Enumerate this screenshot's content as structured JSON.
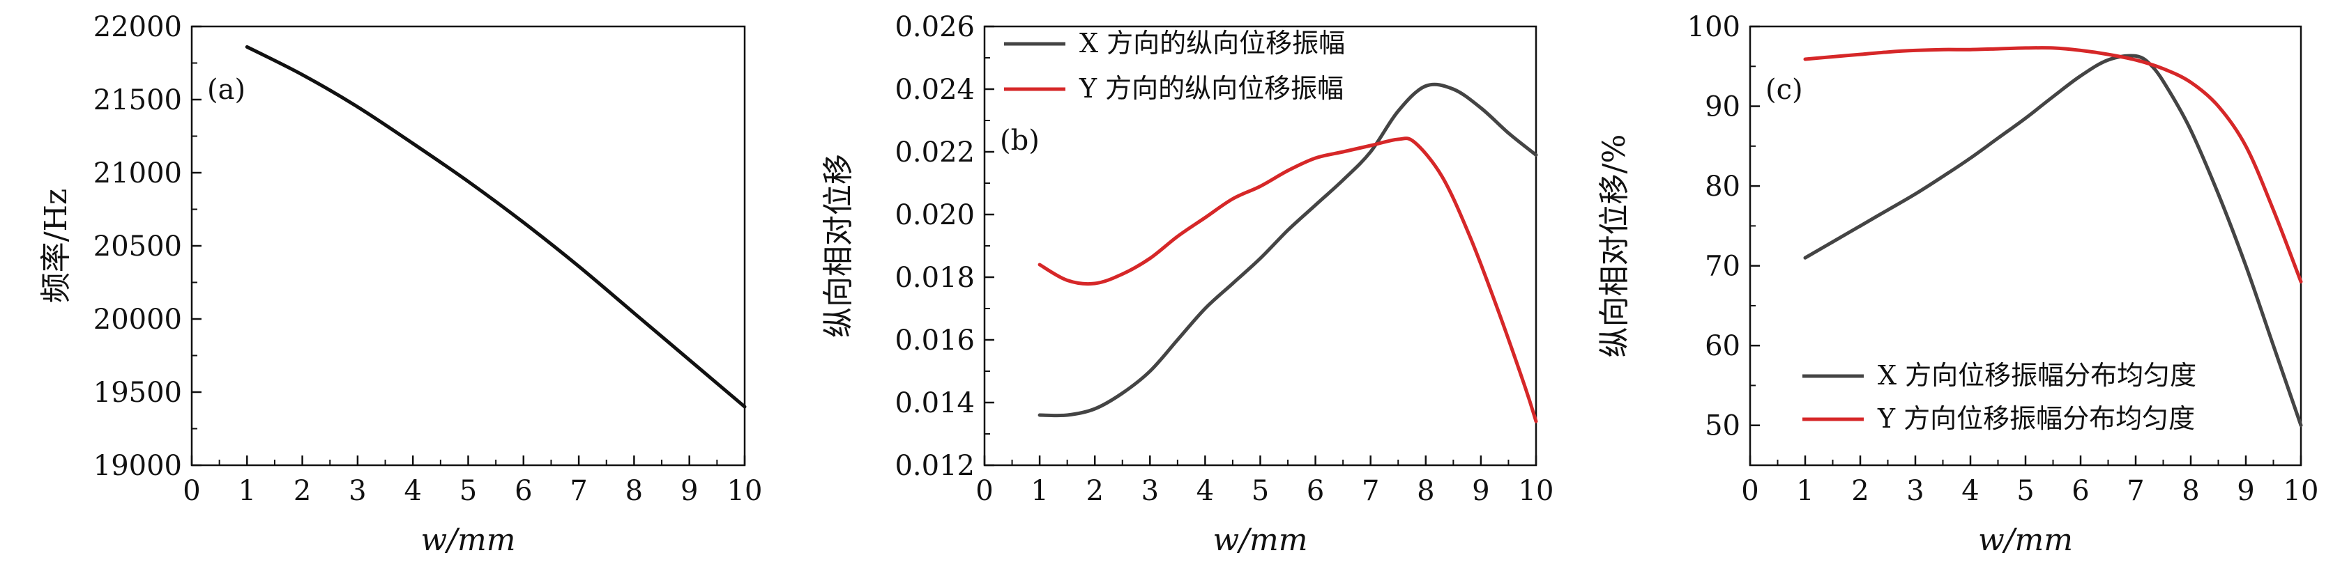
{
  "colors": {
    "black": "#111111",
    "dark_gray": "#444444",
    "red": "#d62728"
  },
  "chart_data": [
    {
      "type": "line",
      "panel_label": "(a)",
      "xlabel": "w/mm",
      "ylabel": "频率/Hz",
      "xlim": [
        0,
        10
      ],
      "ylim": [
        19000,
        22000
      ],
      "xticks": [
        0,
        1,
        2,
        3,
        4,
        5,
        6,
        7,
        8,
        9,
        10
      ],
      "yticks": [
        19000,
        19500,
        20000,
        20500,
        21000,
        21500,
        22000
      ],
      "series": [
        {
          "name": "",
          "color": "#111111",
          "x": [
            1,
            2,
            3,
            4,
            5,
            6,
            7,
            8,
            9,
            10
          ],
          "y": [
            21860,
            21670,
            21450,
            21200,
            20940,
            20660,
            20360,
            20040,
            19720,
            19400
          ]
        }
      ],
      "grid": false,
      "legend": null
    },
    {
      "type": "line",
      "panel_label": "(b)",
      "xlabel": "w/mm",
      "ylabel": "纵向相对位移",
      "xlim": [
        0,
        10
      ],
      "ylim": [
        0.012,
        0.026
      ],
      "xticks": [
        0,
        1,
        2,
        3,
        4,
        5,
        6,
        7,
        8,
        9,
        10
      ],
      "yticks": [
        0.012,
        0.014,
        0.016,
        0.018,
        0.02,
        0.022,
        0.024,
        0.026
      ],
      "series": [
        {
          "name": "X 方向的纵向位移振幅",
          "color": "#444444",
          "x": [
            1,
            1.5,
            2,
            2.5,
            3,
            3.5,
            4,
            4.5,
            5,
            5.5,
            6,
            6.5,
            7,
            7.5,
            8,
            8.5,
            9,
            9.5,
            10
          ],
          "y": [
            0.0136,
            0.0136,
            0.0138,
            0.0143,
            0.015,
            0.016,
            0.017,
            0.0178,
            0.0186,
            0.0195,
            0.0203,
            0.0211,
            0.022,
            0.0233,
            0.0241,
            0.024,
            0.0234,
            0.0226,
            0.0219
          ]
        },
        {
          "name": "Y 方向的纵向位移振幅",
          "color": "#d62728",
          "x": [
            1,
            1.5,
            2,
            2.5,
            3,
            3.5,
            4,
            4.5,
            5,
            5.5,
            6,
            6.5,
            7,
            7.5,
            7.8,
            8.3,
            8.8,
            9.3,
            9.8,
            10
          ],
          "y": [
            0.0184,
            0.0179,
            0.0178,
            0.0181,
            0.0186,
            0.0193,
            0.0199,
            0.0205,
            0.0209,
            0.0214,
            0.0218,
            0.022,
            0.0222,
            0.0224,
            0.0223,
            0.0212,
            0.0193,
            0.017,
            0.0145,
            0.0134
          ]
        }
      ],
      "grid": false,
      "legend": "top-left"
    },
    {
      "type": "line",
      "panel_label": "(c)",
      "xlabel": "w/mm",
      "ylabel": "纵向相对位移/%",
      "xlim": [
        0,
        10
      ],
      "ylim": [
        45,
        100
      ],
      "xticks": [
        0,
        1,
        2,
        3,
        4,
        5,
        6,
        7,
        8,
        9,
        10
      ],
      "yticks": [
        50,
        60,
        70,
        80,
        90,
        100
      ],
      "series": [
        {
          "name": "X 方向位移振幅分布均匀度",
          "color": "#444444",
          "x": [
            1,
            1.5,
            2,
            2.5,
            3,
            3.5,
            4,
            4.5,
            5,
            5.5,
            6,
            6.5,
            7,
            7.3,
            7.6,
            8,
            8.5,
            9,
            9.5,
            10
          ],
          "y": [
            71,
            73,
            75,
            77,
            79,
            81.2,
            83.5,
            86,
            88.5,
            91.2,
            93.8,
            95.8,
            96.3,
            95,
            92,
            87,
            79,
            70,
            60,
            50
          ]
        },
        {
          "name": "Y 方向位移振幅分布均匀度",
          "color": "#d62728",
          "x": [
            1,
            1.5,
            2,
            2.5,
            3,
            3.5,
            4,
            4.5,
            5,
            5.5,
            6,
            6.5,
            7,
            7.5,
            8,
            8.5,
            9,
            9.5,
            10
          ],
          "y": [
            95.9,
            96.2,
            96.5,
            96.8,
            97.0,
            97.1,
            97.1,
            97.2,
            97.3,
            97.3,
            97.0,
            96.5,
            95.8,
            94.7,
            93.0,
            90.0,
            85.0,
            77.0,
            68.0
          ]
        }
      ],
      "grid": false,
      "legend": "bottom-left"
    }
  ]
}
